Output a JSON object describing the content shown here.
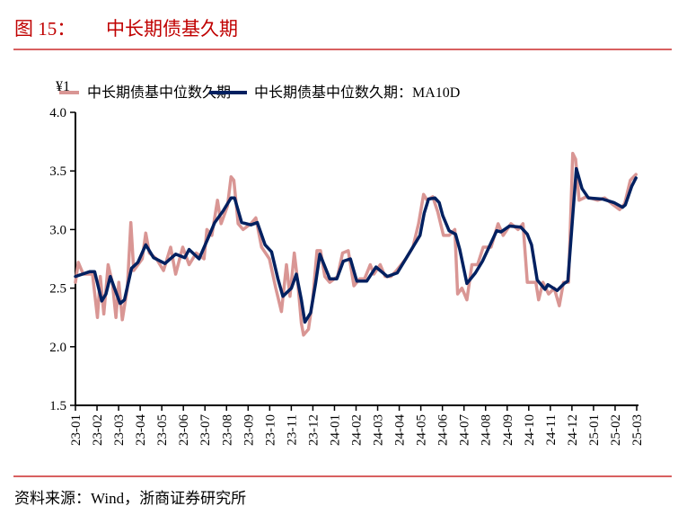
{
  "header": {
    "figure_label": "图 15：",
    "title": "中长期债基久期"
  },
  "footer": {
    "source": "资料来源：Wind，浙商证券研究所"
  },
  "colors": {
    "title": "#c00000",
    "rule": "#c00000",
    "raw_series": "#d99694",
    "ma_series": "#002060"
  },
  "chart_data": {
    "type": "line",
    "title": "",
    "xlabel": "",
    "ylabel": "",
    "unit_marker": "¥1",
    "ylim": [
      1.5,
      4.0
    ],
    "yticks": [
      "4.0",
      "3.5",
      "3.0",
      "2.5",
      "2.0",
      "1.5"
    ],
    "xlim": [
      "2023-01-01",
      "2025-03-01"
    ],
    "xticks": [
      "23-01",
      "23-02",
      "23-03",
      "23-04",
      "23-05",
      "23-06",
      "23-07",
      "23-08",
      "23-09",
      "23-10",
      "23-11",
      "23-12",
      "24-01",
      "24-02",
      "24-03",
      "24-04",
      "24-05",
      "24-06",
      "24-07",
      "24-08",
      "24-09",
      "24-10",
      "24-11",
      "24-12",
      "25-01",
      "25-02",
      "25-03"
    ],
    "grid": false,
    "legend_placement": "top",
    "series": [
      {
        "name": "中长期债基中位数久期",
        "color": "#d99694",
        "points": [
          [
            "2023-01-01",
            2.55
          ],
          [
            "2023-01-05",
            2.72
          ],
          [
            "2023-01-12",
            2.62
          ],
          [
            "2023-01-25",
            2.62
          ],
          [
            "2023-02-01",
            2.25
          ],
          [
            "2023-02-05",
            2.6
          ],
          [
            "2023-02-10",
            2.28
          ],
          [
            "2023-02-16",
            2.7
          ],
          [
            "2023-02-22",
            2.55
          ],
          [
            "2023-02-27",
            2.25
          ],
          [
            "2023-03-03",
            2.55
          ],
          [
            "2023-03-08",
            2.23
          ],
          [
            "2023-03-15",
            2.5
          ],
          [
            "2023-03-20",
            3.06
          ],
          [
            "2023-03-24",
            2.65
          ],
          [
            "2023-04-05",
            2.75
          ],
          [
            "2023-04-10",
            2.97
          ],
          [
            "2023-04-15",
            2.8
          ],
          [
            "2023-04-25",
            2.75
          ],
          [
            "2023-05-05",
            2.65
          ],
          [
            "2023-05-15",
            2.85
          ],
          [
            "2023-05-22",
            2.62
          ],
          [
            "2023-06-01",
            2.85
          ],
          [
            "2023-06-10",
            2.7
          ],
          [
            "2023-06-20",
            2.8
          ],
          [
            "2023-07-01",
            2.75
          ],
          [
            "2023-07-05",
            3.0
          ],
          [
            "2023-07-12",
            2.95
          ],
          [
            "2023-07-20",
            3.25
          ],
          [
            "2023-07-25",
            3.05
          ],
          [
            "2023-08-03",
            3.2
          ],
          [
            "2023-08-08",
            3.45
          ],
          [
            "2023-08-12",
            3.42
          ],
          [
            "2023-08-18",
            3.05
          ],
          [
            "2023-08-25",
            3.0
          ],
          [
            "2023-09-05",
            3.05
          ],
          [
            "2023-09-12",
            3.1
          ],
          [
            "2023-09-20",
            2.85
          ],
          [
            "2023-10-01",
            2.75
          ],
          [
            "2023-10-10",
            2.5
          ],
          [
            "2023-10-18",
            2.3
          ],
          [
            "2023-10-25",
            2.7
          ],
          [
            "2023-10-30",
            2.43
          ],
          [
            "2023-11-05",
            2.8
          ],
          [
            "2023-11-10",
            2.55
          ],
          [
            "2023-11-15",
            2.2
          ],
          [
            "2023-11-18",
            2.1
          ],
          [
            "2023-11-25",
            2.15
          ],
          [
            "2023-12-01",
            2.4
          ],
          [
            "2023-12-07",
            2.82
          ],
          [
            "2023-12-12",
            2.82
          ],
          [
            "2023-12-18",
            2.6
          ],
          [
            "2023-12-25",
            2.55
          ],
          [
            "2024-01-05",
            2.6
          ],
          [
            "2024-01-12",
            2.8
          ],
          [
            "2024-01-20",
            2.82
          ],
          [
            "2024-01-28",
            2.52
          ],
          [
            "2024-02-05",
            2.58
          ],
          [
            "2024-02-12",
            2.58
          ],
          [
            "2024-02-20",
            2.7
          ],
          [
            "2024-02-25",
            2.62
          ],
          [
            "2024-03-05",
            2.7
          ],
          [
            "2024-03-12",
            2.6
          ],
          [
            "2024-03-20",
            2.6
          ],
          [
            "2024-03-28",
            2.65
          ],
          [
            "2024-04-10",
            2.75
          ],
          [
            "2024-04-20",
            2.85
          ],
          [
            "2024-04-28",
            3.05
          ],
          [
            "2024-05-05",
            3.3
          ],
          [
            "2024-05-10",
            3.25
          ],
          [
            "2024-05-18",
            3.28
          ],
          [
            "2024-05-25",
            3.15
          ],
          [
            "2024-06-02",
            2.95
          ],
          [
            "2024-06-10",
            2.95
          ],
          [
            "2024-06-18",
            3.0
          ],
          [
            "2024-06-22",
            2.45
          ],
          [
            "2024-06-28",
            2.5
          ],
          [
            "2024-07-05",
            2.4
          ],
          [
            "2024-07-12",
            2.7
          ],
          [
            "2024-07-20",
            2.7
          ],
          [
            "2024-07-28",
            2.85
          ],
          [
            "2024-08-08",
            2.85
          ],
          [
            "2024-08-18",
            3.05
          ],
          [
            "2024-08-25",
            2.95
          ],
          [
            "2024-09-05",
            3.05
          ],
          [
            "2024-09-15",
            3.0
          ],
          [
            "2024-09-22",
            3.05
          ],
          [
            "2024-09-28",
            2.55
          ],
          [
            "2024-10-10",
            2.55
          ],
          [
            "2024-10-14",
            2.4
          ],
          [
            "2024-10-20",
            2.55
          ],
          [
            "2024-10-28",
            2.45
          ],
          [
            "2024-11-05",
            2.5
          ],
          [
            "2024-11-12",
            2.35
          ],
          [
            "2024-11-18",
            2.55
          ],
          [
            "2024-11-25",
            2.55
          ],
          [
            "2024-12-01",
            3.65
          ],
          [
            "2024-12-05",
            3.6
          ],
          [
            "2024-12-10",
            3.25
          ],
          [
            "2024-12-20",
            3.28
          ],
          [
            "2025-01-05",
            3.25
          ],
          [
            "2025-01-15",
            3.27
          ],
          [
            "2025-01-25",
            3.22
          ],
          [
            "2025-02-05",
            3.17
          ],
          [
            "2025-02-12",
            3.22
          ],
          [
            "2025-02-20",
            3.42
          ],
          [
            "2025-02-28",
            3.47
          ]
        ]
      },
      {
        "name": "中长期债基中位数久期：MA10D",
        "color": "#002060",
        "points": [
          [
            "2023-01-01",
            2.6
          ],
          [
            "2023-01-21",
            2.64
          ],
          [
            "2023-01-28",
            2.64
          ],
          [
            "2023-02-07",
            2.39
          ],
          [
            "2023-02-13",
            2.45
          ],
          [
            "2023-02-19",
            2.6
          ],
          [
            "2023-02-25",
            2.5
          ],
          [
            "2023-03-05",
            2.37
          ],
          [
            "2023-03-11",
            2.4
          ],
          [
            "2023-03-21",
            2.67
          ],
          [
            "2023-03-30",
            2.72
          ],
          [
            "2023-04-10",
            2.87
          ],
          [
            "2023-04-21",
            2.76
          ],
          [
            "2023-05-07",
            2.71
          ],
          [
            "2023-05-22",
            2.79
          ],
          [
            "2023-06-04",
            2.76
          ],
          [
            "2023-06-10",
            2.83
          ],
          [
            "2023-06-24",
            2.75
          ],
          [
            "2023-07-07",
            2.93
          ],
          [
            "2023-07-16",
            3.06
          ],
          [
            "2023-07-28",
            3.16
          ],
          [
            "2023-08-08",
            3.27
          ],
          [
            "2023-08-13",
            3.27
          ],
          [
            "2023-08-23",
            3.06
          ],
          [
            "2023-09-05",
            3.04
          ],
          [
            "2023-09-14",
            3.06
          ],
          [
            "2023-09-25",
            2.87
          ],
          [
            "2023-10-04",
            2.81
          ],
          [
            "2023-10-13",
            2.58
          ],
          [
            "2023-10-20",
            2.43
          ],
          [
            "2023-11-01",
            2.5
          ],
          [
            "2023-11-08",
            2.62
          ],
          [
            "2023-11-15",
            2.4
          ],
          [
            "2023-11-20",
            2.21
          ],
          [
            "2023-11-28",
            2.29
          ],
          [
            "2023-12-05",
            2.54
          ],
          [
            "2023-12-11",
            2.79
          ],
          [
            "2023-12-25",
            2.58
          ],
          [
            "2024-01-04",
            2.58
          ],
          [
            "2024-01-13",
            2.73
          ],
          [
            "2024-01-23",
            2.75
          ],
          [
            "2024-02-01",
            2.56
          ],
          [
            "2024-02-15",
            2.56
          ],
          [
            "2024-02-28",
            2.68
          ],
          [
            "2024-03-15",
            2.6
          ],
          [
            "2024-03-29",
            2.63
          ],
          [
            "2024-04-16",
            2.81
          ],
          [
            "2024-04-30",
            2.95
          ],
          [
            "2024-05-06",
            3.14
          ],
          [
            "2024-05-12",
            3.26
          ],
          [
            "2024-05-21",
            3.27
          ],
          [
            "2024-05-27",
            3.23
          ],
          [
            "2024-06-01",
            3.12
          ],
          [
            "2024-06-10",
            2.99
          ],
          [
            "2024-06-19",
            2.96
          ],
          [
            "2024-06-25",
            2.83
          ],
          [
            "2024-07-05",
            2.54
          ],
          [
            "2024-07-17",
            2.63
          ],
          [
            "2024-07-27",
            2.73
          ],
          [
            "2024-08-16",
            2.99
          ],
          [
            "2024-08-22",
            2.98
          ],
          [
            "2024-09-03",
            3.03
          ],
          [
            "2024-09-19",
            3.02
          ],
          [
            "2024-09-28",
            2.96
          ],
          [
            "2024-10-04",
            2.87
          ],
          [
            "2024-10-12",
            2.57
          ],
          [
            "2024-10-23",
            2.49
          ],
          [
            "2024-10-27",
            2.53
          ],
          [
            "2024-11-09",
            2.48
          ],
          [
            "2024-11-19",
            2.54
          ],
          [
            "2024-11-24",
            2.56
          ],
          [
            "2024-12-01",
            3.12
          ],
          [
            "2024-12-06",
            3.52
          ],
          [
            "2024-12-14",
            3.35
          ],
          [
            "2024-12-23",
            3.27
          ],
          [
            "2025-01-12",
            3.26
          ],
          [
            "2025-01-28",
            3.23
          ],
          [
            "2025-02-09",
            3.19
          ],
          [
            "2025-02-13",
            3.21
          ],
          [
            "2025-02-22",
            3.37
          ],
          [
            "2025-02-28",
            3.44
          ]
        ]
      }
    ]
  }
}
